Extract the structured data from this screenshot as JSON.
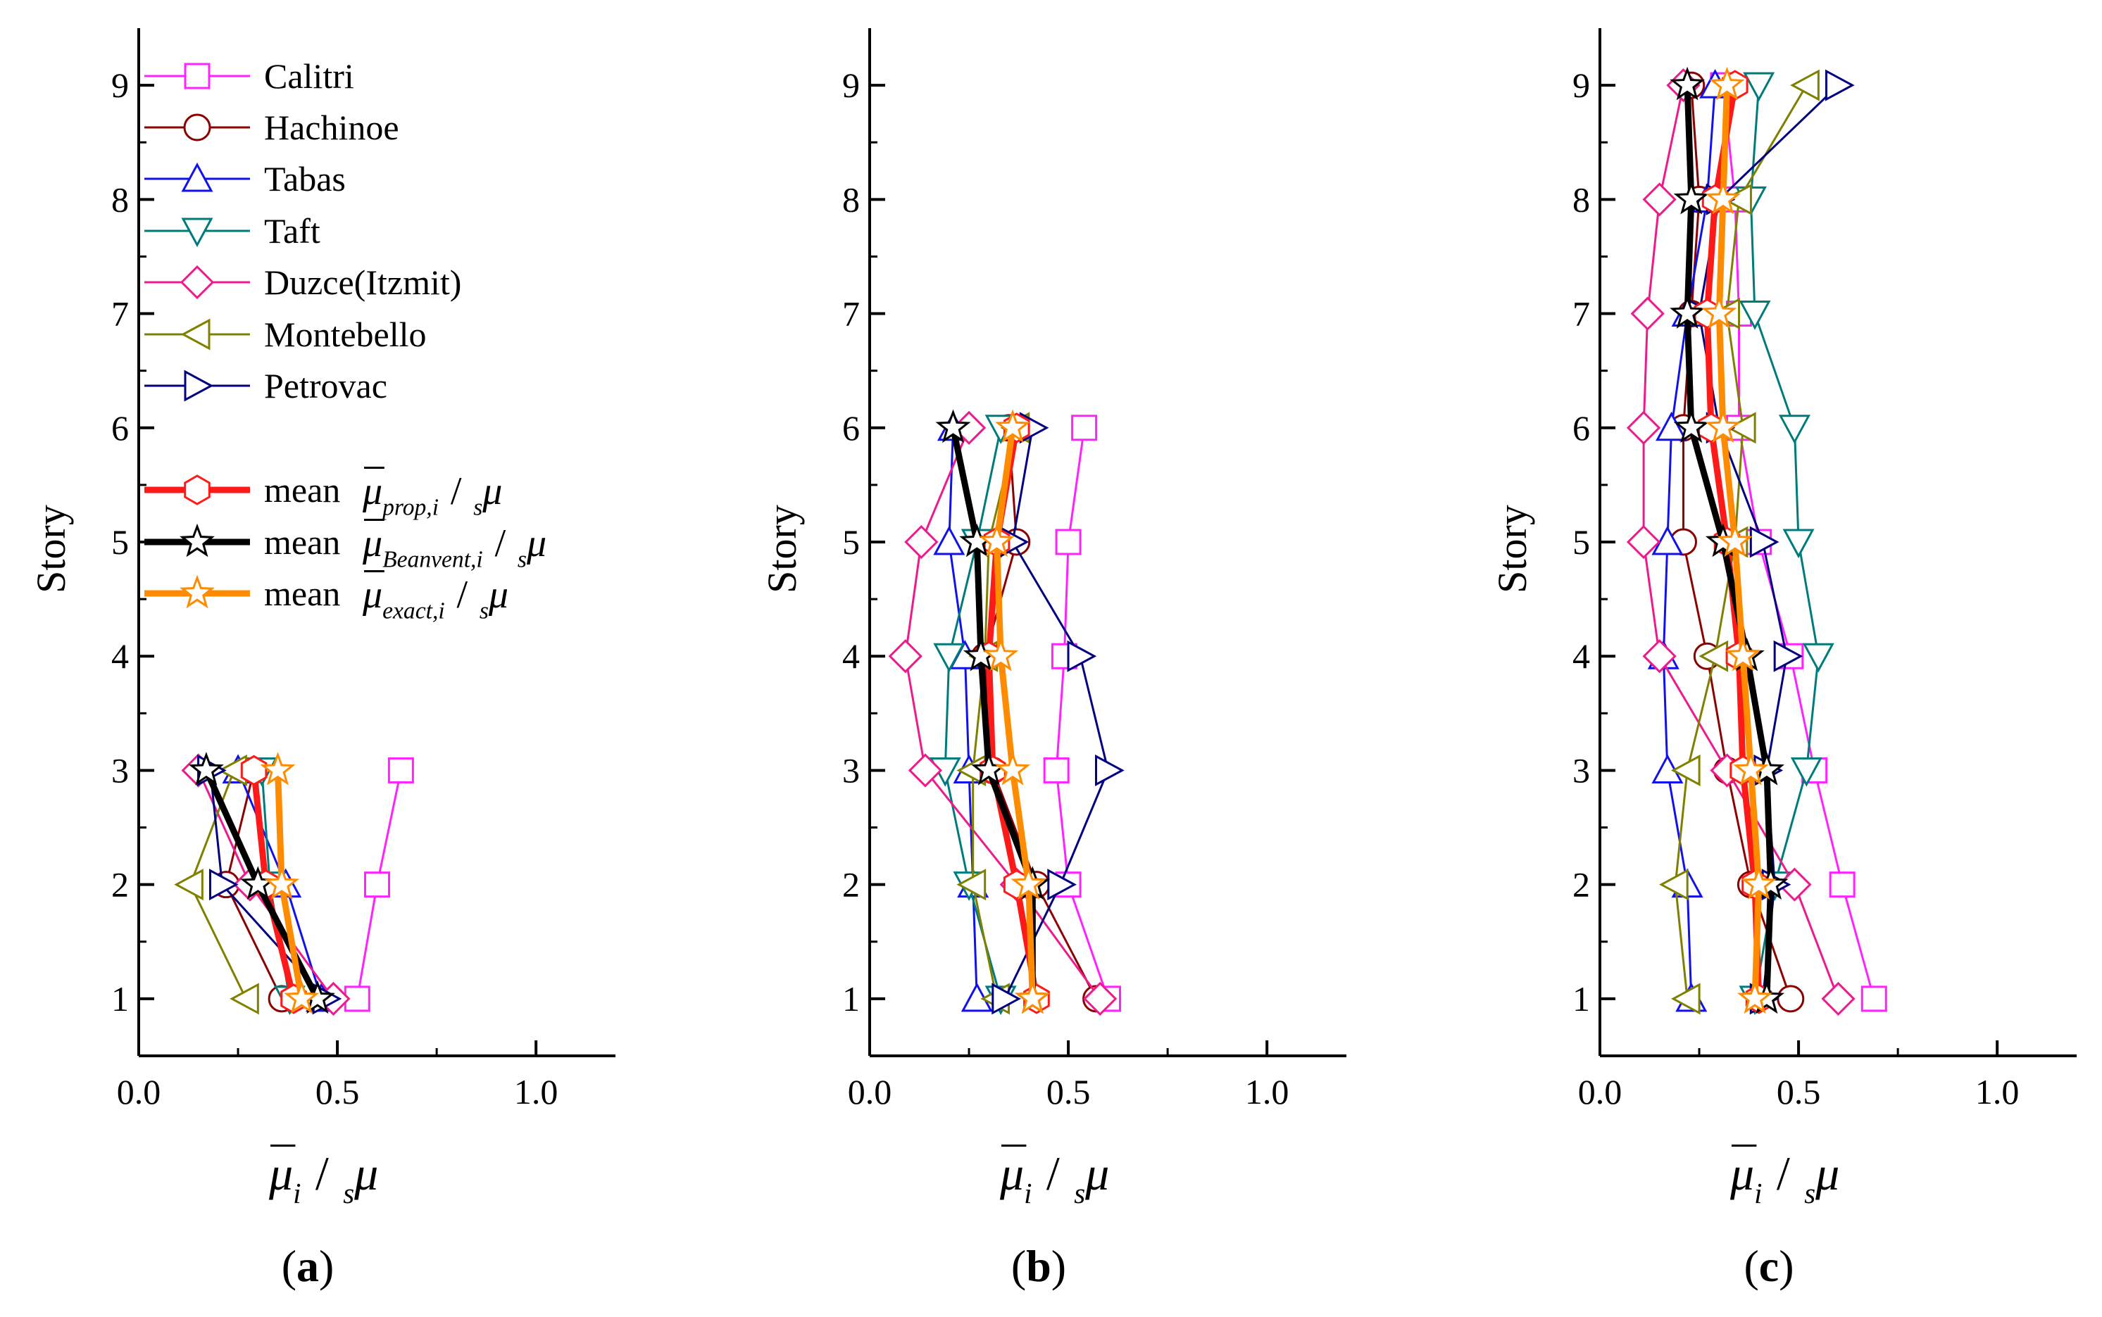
{
  "chart_data": [
    {
      "type": "line",
      "panel_label": "(a)",
      "panel_letter": "a",
      "ylabel": "Story",
      "xlabel": "μ̄_i / _sμ",
      "xlim": [
        0.0,
        1.2
      ],
      "ylim": [
        0.5,
        9.5
      ],
      "xticks": [
        0.0,
        0.5,
        1.0
      ],
      "xtick_labels": [
        "0.0",
        "0.5",
        "1.0"
      ],
      "yticks": [
        1,
        2,
        3,
        4,
        5,
        6,
        7,
        8,
        9
      ],
      "ytick_labels": [
        "1",
        "2",
        "3",
        "4",
        "5",
        "6",
        "7",
        "8",
        "9"
      ],
      "show_legend": true,
      "series": [
        {
          "name": "Calitri",
          "x": [
            0.55,
            0.6,
            0.66
          ],
          "y": [
            1,
            2,
            3
          ]
        },
        {
          "name": "Hachinoe",
          "x": [
            0.36,
            0.22,
            0.29
          ],
          "y": [
            1,
            2,
            3
          ]
        },
        {
          "name": "Tabas",
          "x": [
            0.46,
            0.37,
            0.25
          ],
          "y": [
            1,
            2,
            3
          ]
        },
        {
          "name": "Taft",
          "x": [
            0.38,
            0.33,
            0.31
          ],
          "y": [
            1,
            2,
            3
          ]
        },
        {
          "name": "Duzce(Itzmit)",
          "x": [
            0.49,
            0.28,
            0.15
          ],
          "y": [
            1,
            2,
            3
          ]
        },
        {
          "name": "Montebello",
          "x": [
            0.27,
            0.13,
            0.24
          ],
          "y": [
            1,
            2,
            3
          ]
        },
        {
          "name": "Petrovac",
          "x": [
            0.47,
            0.21,
            0.18
          ],
          "y": [
            1,
            2,
            3
          ]
        },
        {
          "name": "mean prop",
          "x": [
            0.39,
            0.32,
            0.29
          ],
          "y": [
            1,
            2,
            3
          ]
        },
        {
          "name": "mean Beanvent",
          "x": [
            0.45,
            0.3,
            0.17
          ],
          "y": [
            1,
            2,
            3
          ]
        },
        {
          "name": "mean exact",
          "x": [
            0.41,
            0.36,
            0.35
          ],
          "y": [
            1,
            2,
            3
          ]
        }
      ]
    },
    {
      "type": "line",
      "panel_label": "(b)",
      "panel_letter": "b",
      "ylabel": "Story",
      "xlabel": "μ̄_i / _sμ",
      "xlim": [
        0.0,
        1.2
      ],
      "ylim": [
        0.5,
        9.5
      ],
      "xticks": [
        0.0,
        0.5,
        1.0
      ],
      "xtick_labels": [
        "0.0",
        "0.5",
        "1.0"
      ],
      "yticks": [
        1,
        2,
        3,
        4,
        5,
        6,
        7,
        8,
        9
      ],
      "ytick_labels": [
        "1",
        "2",
        "3",
        "4",
        "5",
        "6",
        "7",
        "8",
        "9"
      ],
      "show_legend": false,
      "series": [
        {
          "name": "Calitri",
          "x": [
            0.6,
            0.5,
            0.47,
            0.49,
            0.5,
            0.54
          ],
          "y": [
            1,
            2,
            3,
            4,
            5,
            6
          ]
        },
        {
          "name": "Hachinoe",
          "x": [
            0.57,
            0.42,
            0.31,
            0.29,
            0.37,
            0.35
          ],
          "y": [
            1,
            2,
            3,
            4,
            5,
            6
          ]
        },
        {
          "name": "Tabas",
          "x": [
            0.27,
            0.26,
            0.25,
            0.24,
            0.2,
            0.21
          ],
          "y": [
            1,
            2,
            3,
            4,
            5,
            6
          ]
        },
        {
          "name": "Taft",
          "x": [
            0.33,
            0.25,
            0.19,
            0.2,
            0.27,
            0.33
          ],
          "y": [
            1,
            2,
            3,
            4,
            5,
            6
          ]
        },
        {
          "name": "Duzce(Itzmit)",
          "x": [
            0.58,
            0.37,
            0.14,
            0.09,
            0.13,
            0.25
          ],
          "y": [
            1,
            2,
            3,
            4,
            5,
            6
          ]
        },
        {
          "name": "Montebello",
          "x": [
            0.32,
            0.26,
            0.26,
            0.29,
            0.3,
            0.37
          ],
          "y": [
            1,
            2,
            3,
            4,
            5,
            6
          ]
        },
        {
          "name": "Petrovac",
          "x": [
            0.34,
            0.48,
            0.6,
            0.53,
            0.36,
            0.41
          ],
          "y": [
            1,
            2,
            3,
            4,
            5,
            6
          ]
        },
        {
          "name": "mean prop",
          "x": [
            0.42,
            0.37,
            0.31,
            0.3,
            0.32,
            0.37
          ],
          "y": [
            1,
            2,
            3,
            4,
            5,
            6
          ]
        },
        {
          "name": "mean Beanvent",
          "x": [
            0.41,
            0.41,
            0.3,
            0.28,
            0.27,
            0.21
          ],
          "y": [
            1,
            2,
            3,
            4,
            5,
            6
          ]
        },
        {
          "name": "mean exact",
          "x": [
            0.41,
            0.4,
            0.36,
            0.33,
            0.32,
            0.36
          ],
          "y": [
            1,
            2,
            3,
            4,
            5,
            6
          ]
        }
      ]
    },
    {
      "type": "line",
      "panel_label": "(c)",
      "panel_letter": "c",
      "ylabel": "Story",
      "xlabel": "μ̄_i / _sμ",
      "xlim": [
        0.0,
        1.2
      ],
      "ylim": [
        0.5,
        9.5
      ],
      "xticks": [
        0.0,
        0.5,
        1.0
      ],
      "xtick_labels": [
        "0.0",
        "0.5",
        "1.0"
      ],
      "yticks": [
        1,
        2,
        3,
        4,
        5,
        6,
        7,
        8,
        9
      ],
      "ytick_labels": [
        "1",
        "2",
        "3",
        "4",
        "5",
        "6",
        "7",
        "8",
        "9"
      ],
      "show_legend": false,
      "series": [
        {
          "name": "Calitri",
          "x": [
            0.69,
            0.61,
            0.54,
            0.48,
            0.4,
            0.35,
            0.35,
            0.34,
            0.31
          ],
          "y": [
            1,
            2,
            3,
            4,
            5,
            6,
            7,
            8,
            9
          ]
        },
        {
          "name": "Hachinoe",
          "x": [
            0.48,
            0.38,
            0.32,
            0.27,
            0.21,
            0.21,
            0.23,
            0.25,
            0.23
          ],
          "y": [
            1,
            2,
            3,
            4,
            5,
            6,
            7,
            8,
            9
          ]
        },
        {
          "name": "Tabas",
          "x": [
            0.23,
            0.22,
            0.17,
            0.16,
            0.17,
            0.18,
            0.22,
            0.27,
            0.29
          ],
          "y": [
            1,
            2,
            3,
            4,
            5,
            6,
            7,
            8,
            9
          ]
        },
        {
          "name": "Taft",
          "x": [
            0.39,
            0.44,
            0.52,
            0.55,
            0.5,
            0.49,
            0.39,
            0.38,
            0.4
          ],
          "y": [
            1,
            2,
            3,
            4,
            5,
            6,
            7,
            8,
            9
          ]
        },
        {
          "name": "Duzce(Itzmit)",
          "x": [
            0.6,
            0.49,
            0.32,
            0.15,
            0.11,
            0.11,
            0.12,
            0.15,
            0.21
          ],
          "y": [
            1,
            2,
            3,
            4,
            5,
            6,
            7,
            8,
            9
          ]
        },
        {
          "name": "Montebello",
          "x": [
            0.22,
            0.19,
            0.22,
            0.29,
            0.34,
            0.36,
            0.32,
            0.35,
            0.52
          ],
          "y": [
            1,
            2,
            3,
            4,
            5,
            6,
            7,
            8,
            9
          ]
        },
        {
          "name": "Petrovac",
          "x": [
            0.41,
            0.44,
            0.42,
            0.47,
            0.41,
            0.3,
            0.25,
            0.3,
            0.6
          ],
          "y": [
            1,
            2,
            3,
            4,
            5,
            6,
            7,
            8,
            9
          ]
        },
        {
          "name": "mean prop",
          "x": [
            0.4,
            0.39,
            0.36,
            0.35,
            0.32,
            0.28,
            0.27,
            0.29,
            0.34
          ],
          "y": [
            1,
            2,
            3,
            4,
            5,
            6,
            7,
            8,
            9
          ]
        },
        {
          "name": "mean Beanvent",
          "x": [
            0.42,
            0.43,
            0.42,
            0.37,
            0.31,
            0.23,
            0.22,
            0.23,
            0.22
          ],
          "y": [
            1,
            2,
            3,
            4,
            5,
            6,
            7,
            8,
            9
          ]
        },
        {
          "name": "mean exact",
          "x": [
            0.39,
            0.4,
            0.38,
            0.36,
            0.34,
            0.31,
            0.3,
            0.31,
            0.32
          ],
          "y": [
            1,
            2,
            3,
            4,
            5,
            6,
            7,
            8,
            9
          ]
        }
      ]
    }
  ],
  "legend": [
    {
      "label": "Calitri",
      "color": "#ff22ff",
      "marker": "square",
      "width": 3,
      "fill": "#ffffff"
    },
    {
      "label": "Hachinoe",
      "color": "#8b0000",
      "marker": "circle",
      "width": 3,
      "fill": "#ffffff"
    },
    {
      "label": "Tabas",
      "color": "#1111ee",
      "marker": "triangle-up",
      "width": 3,
      "fill": "#ffffff"
    },
    {
      "label": "Taft",
      "color": "#007b7b",
      "marker": "triangle-down",
      "width": 3,
      "fill": "#ffffff"
    },
    {
      "label": "Duzce(Itzmit)",
      "color": "#ee1a8c",
      "marker": "diamond",
      "width": 3,
      "fill": "#ffffff"
    },
    {
      "label": "Montebello",
      "color": "#808000",
      "marker": "triangle-left",
      "width": 3,
      "fill": "#ffffff"
    },
    {
      "label": "Petrovac",
      "color": "#000080",
      "marker": "triangle-right",
      "width": 3,
      "fill": "#ffffff"
    },
    {
      "label": "mean",
      "color": "#ff1a1a",
      "marker": "hexagon",
      "width": 9,
      "fill": "#ffffff",
      "formula": {
        "sub": "prop,i"
      }
    },
    {
      "label": "mean",
      "color": "#000000",
      "marker": "star",
      "width": 9,
      "fill": "#ffffff",
      "formula": {
        "sub": "Beanvent,i"
      }
    },
    {
      "label": "mean",
      "color": "#ff8c00",
      "marker": "star",
      "width": 9,
      "fill": "#ffffff",
      "formula": {
        "sub": "exact,i"
      }
    }
  ],
  "formula": {
    "mu": "μ",
    "slash": "/",
    "s": "s",
    "i": "i"
  }
}
